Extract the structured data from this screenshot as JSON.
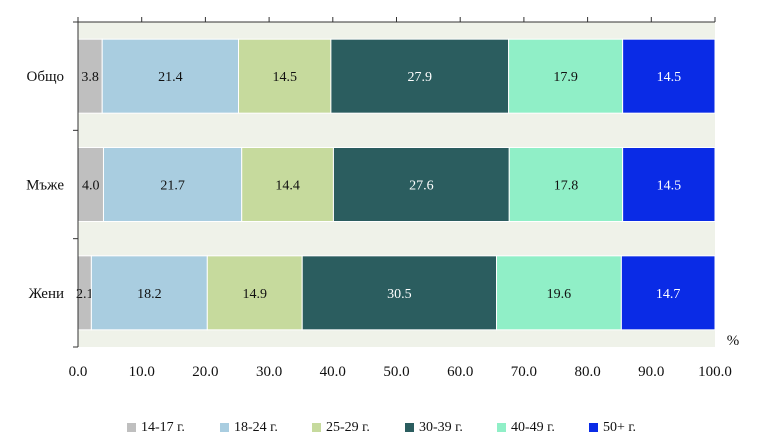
{
  "chart_data": {
    "type": "bar",
    "orientation": "horizontal",
    "stacked": true,
    "categories": [
      "Общо",
      "Мъже",
      "Жени"
    ],
    "series": [
      {
        "name": "14-17 г.",
        "color": "#bfbfbf",
        "label_color": "#111111",
        "values": [
          3.8,
          4.0,
          2.1
        ]
      },
      {
        "name": "18-24 г.",
        "color": "#a9cde0",
        "label_color": "#111111",
        "values": [
          21.4,
          21.7,
          18.2
        ]
      },
      {
        "name": "25-29 г.",
        "color": "#c6da9d",
        "label_color": "#111111",
        "values": [
          14.5,
          14.4,
          14.9
        ]
      },
      {
        "name": "30-39 г.",
        "color": "#2b5d5f",
        "label_color": "#ffffff",
        "values": [
          27.9,
          27.6,
          30.5
        ]
      },
      {
        "name": "40-49 г.",
        "color": "#90efc7",
        "label_color": "#111111",
        "values": [
          17.9,
          17.8,
          19.6
        ]
      },
      {
        "name": "50+ г.",
        "color": "#0a2be6",
        "label_color": "#ffffff",
        "values": [
          14.5,
          14.5,
          14.7
        ]
      }
    ],
    "x_ticks": [
      "0.0",
      "10.0",
      "20.0",
      "30.0",
      "40.0",
      "50.0",
      "60.0",
      "70.0",
      "80.0",
      "90.0",
      "100.0"
    ],
    "xlim": [
      0,
      100
    ],
    "unit_label": "%",
    "legend_position": "bottom",
    "plot_background": "#eff2e9",
    "grid": false
  }
}
